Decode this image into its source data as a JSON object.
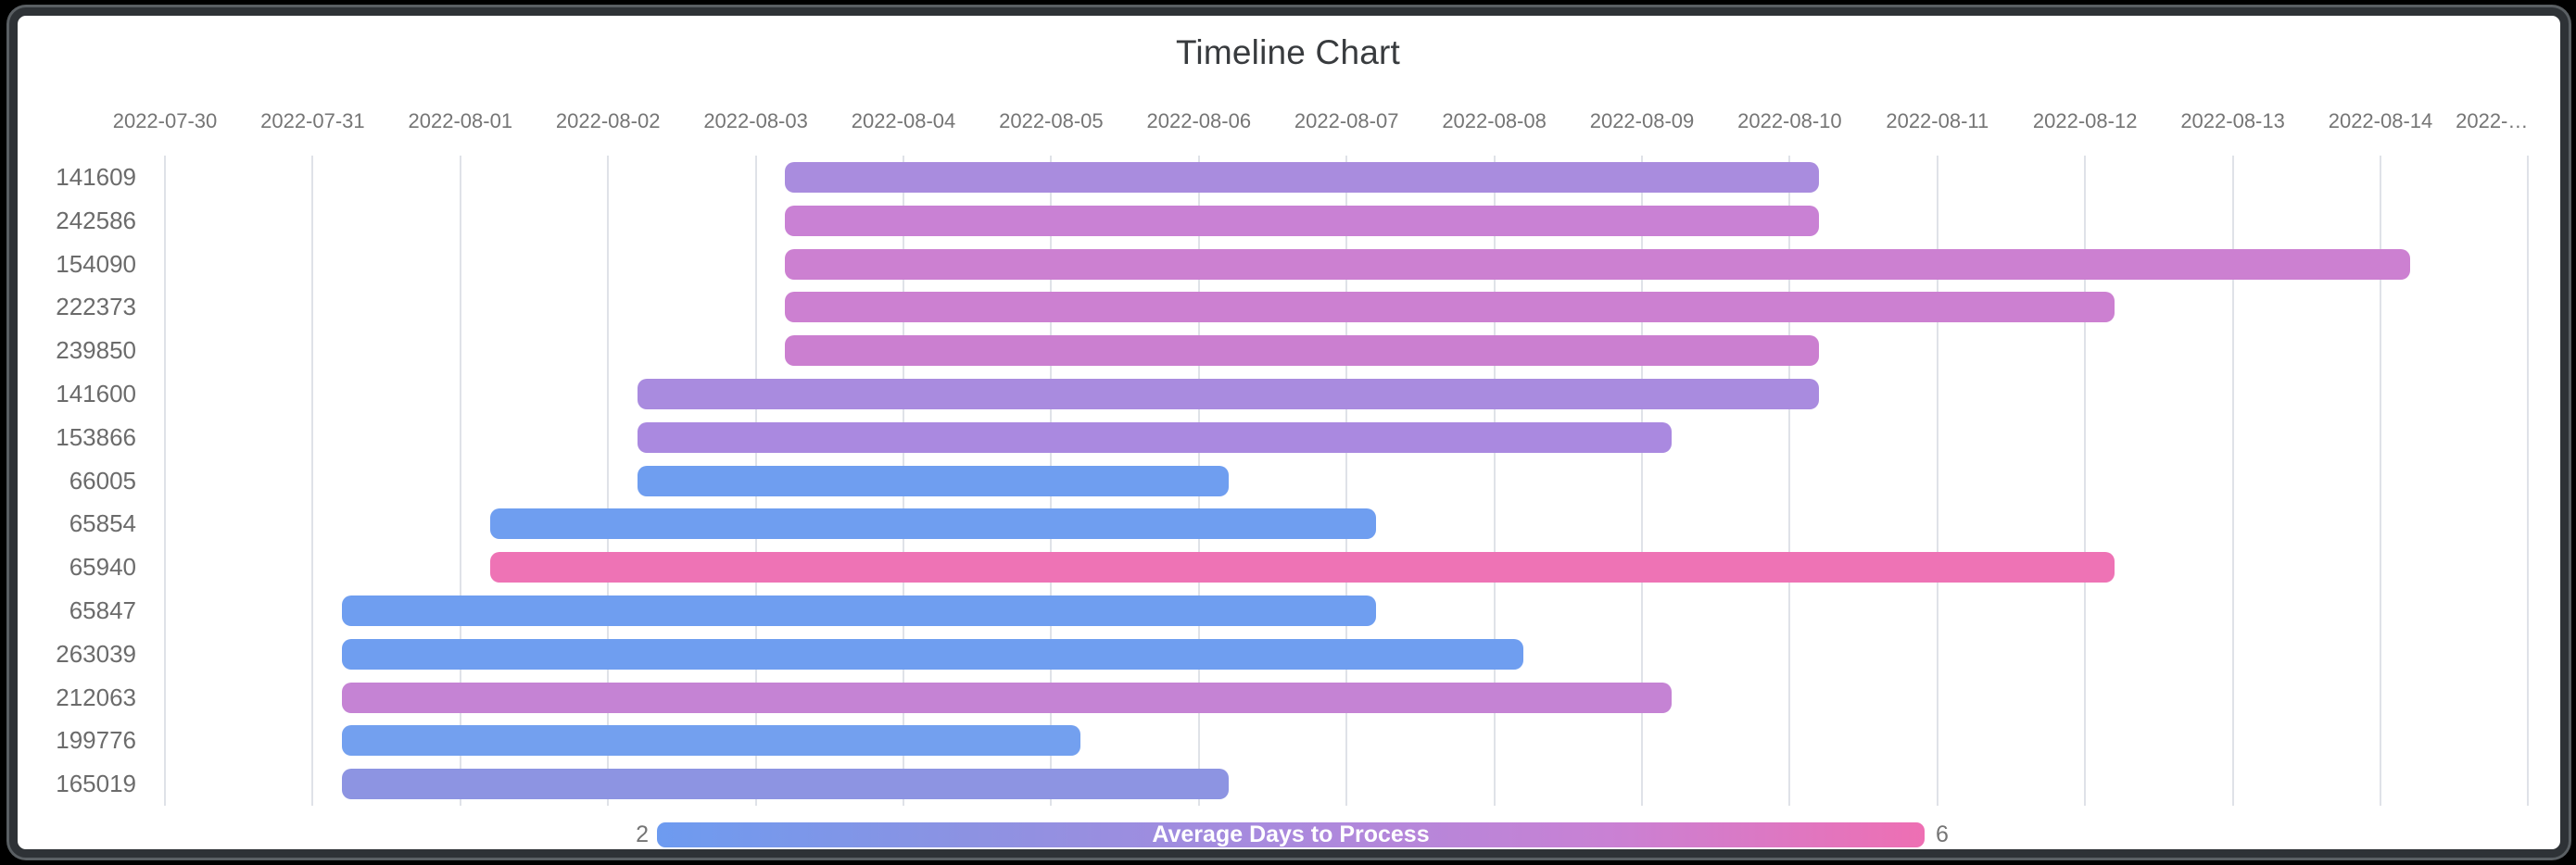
{
  "chart_data": {
    "type": "timeline",
    "title": "Timeline Chart",
    "x_axis": {
      "start_date": "2022-07-30",
      "tick_interval": "1 day",
      "tick_labels": [
        "2022-07-30",
        "2022-07-31",
        "2022-08-01",
        "2022-08-02",
        "2022-08-03",
        "2022-08-04",
        "2022-08-05",
        "2022-08-06",
        "2022-08-07",
        "2022-08-08",
        "2022-08-09",
        "2022-08-10",
        "2022-08-11",
        "2022-08-12",
        "2022-08-13",
        "2022-08-14",
        "2022-…"
      ],
      "grid": true
    },
    "rows": [
      {
        "label": "141609",
        "start_day": 4.2,
        "end_day": 11.2,
        "duration_days": 7,
        "color": "#a98cde"
      },
      {
        "label": "242586",
        "start_day": 4.2,
        "end_day": 11.2,
        "duration_days": 7,
        "color": "#c981d4"
      },
      {
        "label": "154090",
        "start_day": 4.2,
        "end_day": 15.2,
        "duration_days": 11,
        "color": "#cc80d1"
      },
      {
        "label": "222373",
        "start_day": 4.2,
        "end_day": 13.2,
        "duration_days": 9,
        "color": "#cc80d1"
      },
      {
        "label": "239850",
        "start_day": 4.2,
        "end_day": 11.2,
        "duration_days": 7,
        "color": "#cb7fd0"
      },
      {
        "label": "141600",
        "start_day": 3.2,
        "end_day": 11.2,
        "duration_days": 8,
        "color": "#a98bdf"
      },
      {
        "label": "153866",
        "start_day": 3.2,
        "end_day": 10.2,
        "duration_days": 7,
        "color": "#aa89e0"
      },
      {
        "label": "66005",
        "start_day": 3.2,
        "end_day": 7.2,
        "duration_days": 4,
        "color": "#6f9ef0"
      },
      {
        "label": "65854",
        "start_day": 2.2,
        "end_day": 8.2,
        "duration_days": 6,
        "color": "#6f9ef0"
      },
      {
        "label": "65940",
        "start_day": 2.2,
        "end_day": 13.2,
        "duration_days": 11,
        "color": "#ee73b5"
      },
      {
        "label": "65847",
        "start_day": 1.2,
        "end_day": 8.2,
        "duration_days": 7,
        "color": "#6f9ef0"
      },
      {
        "label": "263039",
        "start_day": 1.2,
        "end_day": 9.2,
        "duration_days": 8,
        "color": "#6f9ef0"
      },
      {
        "label": "212063",
        "start_day": 1.2,
        "end_day": 10.2,
        "duration_days": 9,
        "color": "#c583d4"
      },
      {
        "label": "199776",
        "start_day": 1.2,
        "end_day": 6.2,
        "duration_days": 5,
        "color": "#73a0ef"
      },
      {
        "label": "165019",
        "start_day": 1.2,
        "end_day": 7.2,
        "duration_days": 6,
        "color": "#8d94e2"
      }
    ],
    "legend": {
      "title": "Average Days to Process",
      "min_label": "2",
      "max_label": "6",
      "position": "bottom",
      "gradient": [
        "#6d9bf0",
        "#8d92e2",
        "#aa89dd",
        "#c981d4",
        "#ee6fb3"
      ]
    }
  }
}
